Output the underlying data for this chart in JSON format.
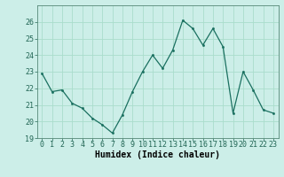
{
  "x": [
    0,
    1,
    2,
    3,
    4,
    5,
    6,
    7,
    8,
    9,
    10,
    11,
    12,
    13,
    14,
    15,
    16,
    17,
    18,
    19,
    20,
    21,
    22,
    23
  ],
  "y": [
    22.9,
    21.8,
    21.9,
    21.1,
    20.8,
    20.2,
    19.8,
    19.3,
    20.4,
    21.8,
    23.0,
    24.0,
    23.2,
    24.3,
    26.1,
    25.6,
    24.6,
    25.6,
    24.5,
    20.5,
    23.0,
    21.9,
    20.7,
    20.5
  ],
  "xlabel": "Humidex (Indice chaleur)",
  "ylim": [
    19,
    27
  ],
  "xlim": [
    -0.5,
    23.5
  ],
  "yticks": [
    19,
    20,
    21,
    22,
    23,
    24,
    25,
    26
  ],
  "xticks": [
    0,
    1,
    2,
    3,
    4,
    5,
    6,
    7,
    8,
    9,
    10,
    11,
    12,
    13,
    14,
    15,
    16,
    17,
    18,
    19,
    20,
    21,
    22,
    23
  ],
  "line_color": "#1a7060",
  "marker_color": "#1a7060",
  "bg_color": "#cceee8",
  "grid_color": "#aaddcc",
  "label_fontsize": 7,
  "tick_fontsize": 6
}
